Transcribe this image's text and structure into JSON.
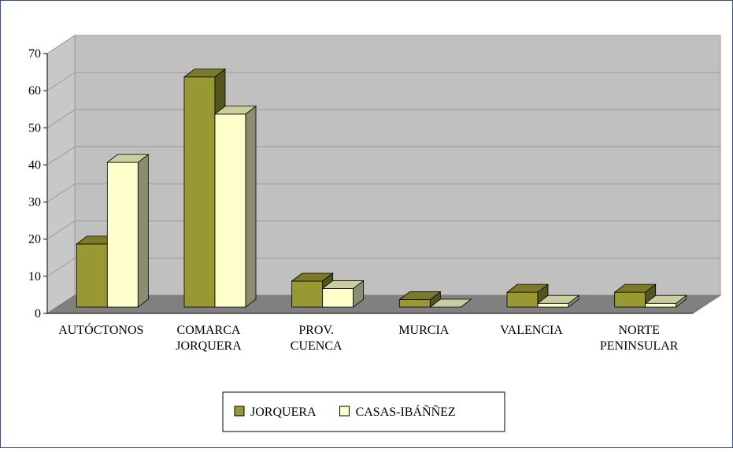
{
  "chart_data": {
    "type": "bar3d",
    "categories": [
      "AUTÓCTONOS",
      "COMARCA JORQUERA",
      "PROV. CUENCA",
      "MURCIA",
      "VALENCIA",
      "NORTE PENINSULAR"
    ],
    "series": [
      {
        "name": "JORQUERA",
        "color": "#999933",
        "values": [
          17,
          62,
          7,
          2,
          4,
          4
        ]
      },
      {
        "name": "CASAS-IBÁÑÑEZ",
        "color": "#ffffcc",
        "values": [
          39,
          52,
          5,
          0,
          1,
          1
        ]
      }
    ],
    "ylim": [
      0,
      70
    ],
    "yticks": [
      0,
      10,
      20,
      30,
      40,
      50,
      60,
      70
    ],
    "grid": true,
    "legend": "bottom"
  }
}
